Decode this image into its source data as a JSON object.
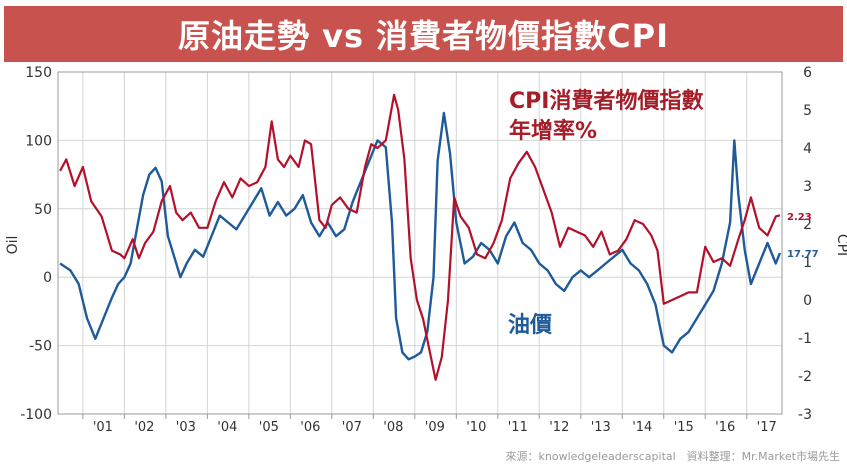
{
  "title": "原油走勢 vs 消費者物價指數CPI",
  "source_text": "來源：knowledgeleaderscapital　資料整理：Mr.Market市場先生",
  "colors": {
    "title_bg": "#c8534e",
    "cpi": "#b3112b",
    "oil": "#1f5a99"
  },
  "chart_data": {
    "type": "line",
    "title": "原油走勢 vs 消費者物價指數CPI",
    "ylabel_left": "Oil",
    "ylabel_right": "CPI",
    "ylim_left": [
      -100,
      150
    ],
    "ylim_right": [
      -3,
      6
    ],
    "yticks_left": [
      150,
      100,
      50,
      0,
      -50,
      -100
    ],
    "yticks_right": [
      6,
      5,
      4,
      3,
      2,
      1,
      0,
      -1,
      -2,
      -3
    ],
    "xlim": [
      2000.4,
      2017.85
    ],
    "x_tick_labels": [
      "'01",
      "'02",
      "'03",
      "'04",
      "'05",
      "'06",
      "'07",
      "'08",
      "'09",
      "'10",
      "'11",
      "'12",
      "'13",
      "'14",
      "'15",
      "'16",
      "'17"
    ],
    "x_tick_years": [
      2001,
      2002,
      2003,
      2004,
      2005,
      2006,
      2007,
      2008,
      2009,
      2010,
      2011,
      2012,
      2013,
      2014,
      2015,
      2016,
      2017
    ],
    "grid": true,
    "annotations": {
      "cpi_label_line1": "CPI消費者物價指數",
      "cpi_label_line2": "年增率%",
      "oil_label": "油價"
    },
    "last_values": {
      "cpi": "2.23",
      "oil": "17.77"
    },
    "series": [
      {
        "name": "CPI消費者物價指數 年增率%",
        "axis": "right",
        "x": [
          2000.45,
          2000.6,
          2000.8,
          2001.0,
          2001.2,
          2001.45,
          2001.7,
          2001.9,
          2002.0,
          2002.2,
          2002.35,
          2002.5,
          2002.7,
          2002.9,
          2003.1,
          2003.25,
          2003.4,
          2003.6,
          2003.8,
          2004.0,
          2004.2,
          2004.4,
          2004.6,
          2004.8,
          2005.0,
          2005.2,
          2005.4,
          2005.55,
          2005.7,
          2005.85,
          2006.0,
          2006.2,
          2006.35,
          2006.5,
          2006.7,
          2006.85,
          2007.0,
          2007.2,
          2007.4,
          2007.6,
          2007.8,
          2007.95,
          2008.1,
          2008.3,
          2008.5,
          2008.6,
          2008.75,
          2008.9,
          2009.05,
          2009.2,
          2009.35,
          2009.5,
          2009.65,
          2009.8,
          2009.95,
          2010.1,
          2010.3,
          2010.5,
          2010.7,
          2010.9,
          2011.1,
          2011.3,
          2011.5,
          2011.7,
          2011.9,
          2012.1,
          2012.3,
          2012.5,
          2012.7,
          2012.9,
          2013.1,
          2013.3,
          2013.5,
          2013.7,
          2013.9,
          2014.1,
          2014.3,
          2014.5,
          2014.7,
          2014.85,
          2015.0,
          2015.2,
          2015.4,
          2015.6,
          2015.8,
          2016.0,
          2016.2,
          2016.4,
          2016.6,
          2016.8,
          2016.95,
          2017.1,
          2017.3,
          2017.5,
          2017.7,
          2017.8
        ],
        "values": [
          3.4,
          3.7,
          3.0,
          3.5,
          2.6,
          2.2,
          1.3,
          1.2,
          1.1,
          1.6,
          1.1,
          1.5,
          1.8,
          2.6,
          3.0,
          2.3,
          2.1,
          2.3,
          1.9,
          1.9,
          2.6,
          3.1,
          2.7,
          3.2,
          3.0,
          3.1,
          3.5,
          4.7,
          3.7,
          3.5,
          3.8,
          3.5,
          4.2,
          4.1,
          2.1,
          1.9,
          2.5,
          2.7,
          2.4,
          2.3,
          3.5,
          4.1,
          4.0,
          4.2,
          5.4,
          5.0,
          3.7,
          1.1,
          0.0,
          -0.5,
          -1.3,
          -2.1,
          -1.5,
          0.0,
          2.7,
          2.2,
          1.9,
          1.2,
          1.1,
          1.5,
          2.1,
          3.2,
          3.6,
          3.9,
          3.5,
          2.9,
          2.3,
          1.4,
          1.9,
          1.8,
          1.7,
          1.4,
          1.8,
          1.2,
          1.3,
          1.6,
          2.1,
          2.0,
          1.7,
          1.3,
          -0.1,
          0.0,
          0.1,
          0.2,
          0.2,
          1.4,
          1.0,
          1.1,
          0.9,
          1.6,
          2.1,
          2.7,
          1.9,
          1.7,
          2.2,
          2.23
        ]
      },
      {
        "name": "油價",
        "axis": "left",
        "x": [
          2000.45,
          2000.7,
          2000.9,
          2001.1,
          2001.3,
          2001.5,
          2001.7,
          2001.85,
          2002.0,
          2002.15,
          2002.3,
          2002.45,
          2002.6,
          2002.75,
          2002.9,
          2003.05,
          2003.2,
          2003.35,
          2003.5,
          2003.7,
          2003.9,
          2004.1,
          2004.3,
          2004.5,
          2004.7,
          2004.9,
          2005.1,
          2005.3,
          2005.5,
          2005.7,
          2005.9,
          2006.1,
          2006.3,
          2006.5,
          2006.7,
          2006.9,
          2007.1,
          2007.3,
          2007.5,
          2007.7,
          2007.9,
          2008.1,
          2008.3,
          2008.45,
          2008.55,
          2008.7,
          2008.85,
          2009.0,
          2009.15,
          2009.3,
          2009.45,
          2009.55,
          2009.7,
          2009.85,
          2010.0,
          2010.2,
          2010.4,
          2010.6,
          2010.8,
          2011.0,
          2011.2,
          2011.4,
          2011.6,
          2011.8,
          2012.0,
          2012.2,
          2012.4,
          2012.6,
          2012.8,
          2013.0,
          2013.2,
          2013.4,
          2013.6,
          2013.8,
          2014.0,
          2014.2,
          2014.4,
          2014.6,
          2014.8,
          2015.0,
          2015.2,
          2015.4,
          2015.6,
          2015.8,
          2016.0,
          2016.2,
          2016.4,
          2016.6,
          2016.7,
          2016.8,
          2016.95,
          2017.1,
          2017.3,
          2017.5,
          2017.7,
          2017.8
        ],
        "values": [
          10,
          5,
          -5,
          -30,
          -45,
          -30,
          -15,
          -5,
          0,
          10,
          35,
          60,
          75,
          80,
          70,
          30,
          15,
          0,
          10,
          20,
          15,
          30,
          45,
          40,
          35,
          45,
          55,
          65,
          45,
          55,
          45,
          50,
          60,
          40,
          30,
          40,
          30,
          35,
          55,
          70,
          85,
          100,
          95,
          40,
          -30,
          -55,
          -60,
          -58,
          -55,
          -40,
          0,
          85,
          120,
          90,
          40,
          10,
          15,
          25,
          20,
          10,
          30,
          40,
          25,
          20,
          10,
          5,
          -5,
          -10,
          0,
          5,
          0,
          5,
          10,
          15,
          20,
          10,
          5,
          -5,
          -20,
          -50,
          -55,
          -45,
          -40,
          -30,
          -20,
          -10,
          10,
          40,
          100,
          60,
          20,
          -5,
          10,
          25,
          10,
          17.77
        ]
      }
    ]
  }
}
